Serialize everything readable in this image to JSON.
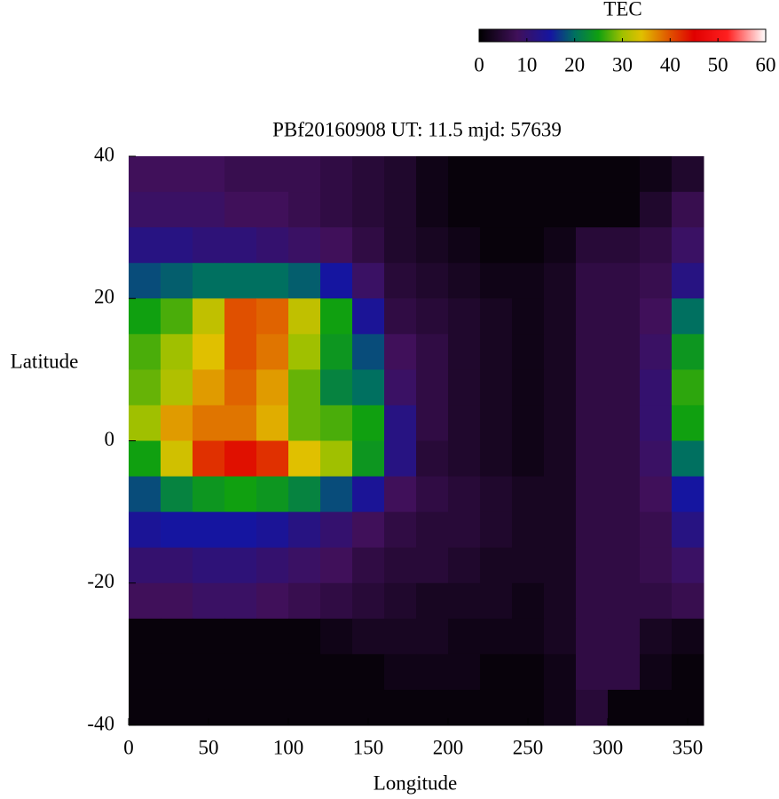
{
  "chart_data": {
    "type": "heatmap",
    "title": "PBf20160908  UT: 11.5  mjd: 57639",
    "x_label": "Longitude",
    "y_label": "Latitude",
    "colorbar_title": "TEC",
    "xlim": [
      0,
      360
    ],
    "xticks": [
      0,
      50,
      100,
      150,
      200,
      250,
      300,
      350
    ],
    "ylim": [
      -40,
      40
    ],
    "yticks": [
      -40,
      -20,
      0,
      20,
      40
    ],
    "clim": [
      0,
      60
    ],
    "cticks": [
      0,
      10,
      20,
      30,
      40,
      50,
      60
    ],
    "colormap": [
      {
        "value": 0,
        "color": "#000000"
      },
      {
        "value": 8,
        "color": "#40105a"
      },
      {
        "value": 15,
        "color": "#1515a0"
      },
      {
        "value": 20,
        "color": "#007060"
      },
      {
        "value": 25,
        "color": "#10a010"
      },
      {
        "value": 30,
        "color": "#a0c000"
      },
      {
        "value": 34,
        "color": "#e0c000"
      },
      {
        "value": 40,
        "color": "#e05000"
      },
      {
        "value": 45,
        "color": "#e00000"
      },
      {
        "value": 52,
        "color": "#ff2020"
      },
      {
        "value": 60,
        "color": "#ffffff"
      }
    ],
    "x": [
      10,
      30,
      50,
      70,
      90,
      110,
      130,
      150,
      170,
      190,
      210,
      230,
      250,
      270,
      290,
      310,
      330,
      350
    ],
    "y": [
      37.5,
      32.5,
      27.5,
      22.5,
      17.5,
      12.5,
      7.5,
      2.5,
      -2.5,
      -7.5,
      -12.5,
      -17.5,
      -22.5,
      -27.5,
      -32.5,
      -37.5
    ],
    "z": [
      [
        8,
        8,
        8,
        7,
        7,
        7,
        6,
        5,
        4,
        2,
        1,
        1,
        1,
        1,
        1,
        1,
        2,
        4
      ],
      [
        9,
        9,
        9,
        8,
        8,
        7,
        6,
        5,
        4,
        2,
        1,
        1,
        1,
        1,
        1,
        1,
        4,
        7
      ],
      [
        12,
        12,
        11,
        11,
        10,
        9,
        8,
        6,
        4,
        3,
        2,
        1,
        1,
        2,
        5,
        5,
        6,
        9
      ],
      [
        18,
        19,
        20,
        20,
        20,
        19,
        15,
        9,
        5,
        4,
        3,
        2,
        2,
        3,
        6,
        6,
        7,
        12
      ],
      [
        25,
        27,
        32,
        40,
        39,
        32,
        25,
        14,
        6,
        5,
        4,
        3,
        2,
        3,
        6,
        6,
        8,
        20
      ],
      [
        27,
        30,
        34,
        40,
        38,
        30,
        24,
        18,
        8,
        6,
        4,
        3,
        2,
        3,
        6,
        6,
        9,
        24
      ],
      [
        28,
        31,
        36,
        39,
        36,
        28,
        22,
        20,
        9,
        6,
        4,
        3,
        2,
        3,
        6,
        6,
        10,
        26
      ],
      [
        30,
        36,
        38,
        38,
        35,
        28,
        27,
        25,
        12,
        6,
        4,
        3,
        2,
        3,
        6,
        6,
        10,
        25
      ],
      [
        25,
        33,
        42,
        44,
        42,
        34,
        30,
        24,
        12,
        5,
        4,
        3,
        2,
        3,
        6,
        6,
        9,
        20
      ],
      [
        18,
        22,
        24,
        25,
        24,
        22,
        18,
        14,
        8,
        6,
        5,
        4,
        3,
        3,
        6,
        6,
        8,
        15
      ],
      [
        14,
        15,
        15,
        15,
        14,
        12,
        10,
        8,
        6,
        5,
        5,
        4,
        3,
        3,
        6,
        6,
        7,
        12
      ],
      [
        10,
        10,
        11,
        11,
        10,
        9,
        8,
        6,
        5,
        5,
        4,
        3,
        3,
        3,
        6,
        6,
        7,
        9
      ],
      [
        8,
        8,
        9,
        9,
        8,
        7,
        6,
        5,
        4,
        3,
        3,
        3,
        2,
        3,
        6,
        6,
        6,
        7
      ],
      [
        1,
        1,
        1,
        1,
        1,
        1,
        2,
        3,
        3,
        3,
        2,
        2,
        2,
        3,
        6,
        6,
        3,
        2
      ],
      [
        1,
        1,
        1,
        1,
        1,
        1,
        1,
        1,
        2,
        2,
        2,
        1,
        1,
        2,
        6,
        6,
        2,
        1
      ],
      [
        1,
        1,
        1,
        1,
        1,
        1,
        1,
        1,
        1,
        1,
        1,
        1,
        1,
        2,
        5,
        1,
        1,
        1
      ]
    ]
  }
}
